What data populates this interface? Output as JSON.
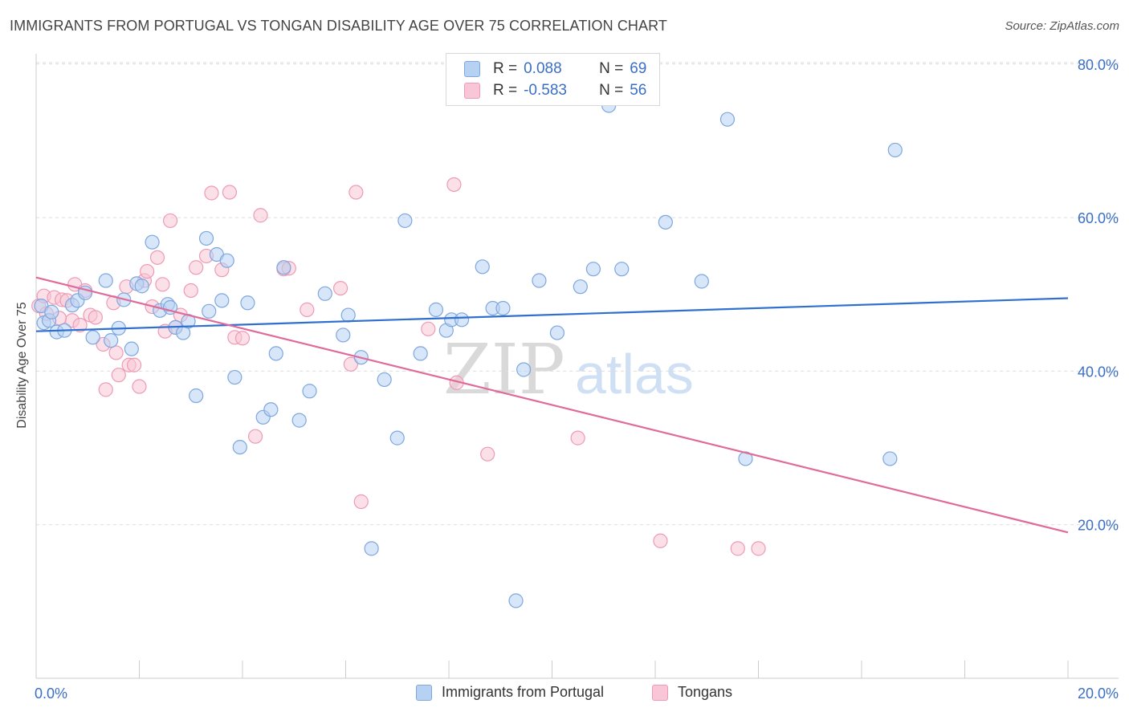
{
  "title": "IMMIGRANTS FROM PORTUGAL VS TONGAN DISABILITY AGE OVER 75 CORRELATION CHART",
  "source": "Source: ZipAtlas.com",
  "watermark": {
    "zip": "ZIP",
    "atlas": "atlas"
  },
  "colors": {
    "blue_fill": "#b7d1f2",
    "blue_stroke": "#7ea7de",
    "blue_line": "#2f6fd0",
    "pink_fill": "#f8c6d6",
    "pink_stroke": "#ee9ab6",
    "pink_line": "#e06a98",
    "tick_text": "#3b6fc4",
    "grid": "#dddddd"
  },
  "legend_top": {
    "rows": [
      {
        "r_label": "R =",
        "r_value": "0.088",
        "n_label": "N =",
        "n_value": "69"
      },
      {
        "r_label": "R =",
        "r_value": "-0.583",
        "n_label": "N =",
        "n_value": "56"
      }
    ]
  },
  "legend_bottom": [
    "Immigrants from Portugal",
    "Tongans"
  ],
  "chart_data": {
    "type": "scatter",
    "title": "IMMIGRANTS FROM PORTUGAL VS TONGAN DISABILITY AGE OVER 75 CORRELATION CHART",
    "xlabel": "",
    "ylabel": "Disability Age Over 75",
    "xlim": [
      0,
      20
    ],
    "ylim": [
      0,
      85
    ],
    "x_ticks": [
      "0.0%",
      "20.0%"
    ],
    "y_ticks": [
      {
        "value": 20,
        "label": "20.0%"
      },
      {
        "value": 40,
        "label": "40.0%"
      },
      {
        "value": 60,
        "label": "60.0%"
      },
      {
        "value": 80,
        "label": "80.0%"
      }
    ],
    "grid": true,
    "legend_position": "top-center",
    "series": [
      {
        "name": "Immigrants from Portugal",
        "r": 0.088,
        "n": 69,
        "trend": {
          "x": [
            0,
            20
          ],
          "y": [
            45.2,
            49.5
          ]
        },
        "points": [
          [
            0.1,
            48.5
          ],
          [
            0.15,
            46.3
          ],
          [
            0.25,
            46.6
          ],
          [
            0.4,
            45.1
          ],
          [
            0.55,
            45.3
          ],
          [
            0.7,
            48.6
          ],
          [
            0.8,
            49.2
          ],
          [
            0.95,
            50.2
          ],
          [
            1.1,
            44.4
          ],
          [
            1.35,
            51.8
          ],
          [
            1.45,
            44.0
          ],
          [
            1.6,
            45.6
          ],
          [
            1.7,
            49.3
          ],
          [
            1.85,
            42.9
          ],
          [
            1.95,
            51.4
          ],
          [
            2.05,
            51.1
          ],
          [
            2.25,
            56.8
          ],
          [
            2.4,
            47.9
          ],
          [
            2.55,
            48.7
          ],
          [
            2.7,
            45.7
          ],
          [
            2.85,
            45.0
          ],
          [
            2.95,
            46.5
          ],
          [
            3.1,
            36.8
          ],
          [
            3.3,
            57.3
          ],
          [
            3.35,
            47.8
          ],
          [
            3.5,
            55.2
          ],
          [
            3.6,
            49.2
          ],
          [
            3.7,
            54.4
          ],
          [
            3.85,
            39.2
          ],
          [
            3.95,
            30.1
          ],
          [
            4.1,
            48.9
          ],
          [
            4.4,
            34.0
          ],
          [
            4.55,
            35.0
          ],
          [
            4.65,
            42.3
          ],
          [
            4.8,
            53.5
          ],
          [
            5.1,
            33.6
          ],
          [
            5.3,
            37.4
          ],
          [
            5.6,
            50.1
          ],
          [
            5.95,
            44.7
          ],
          [
            6.05,
            47.3
          ],
          [
            6.3,
            41.8
          ],
          [
            6.5,
            16.9
          ],
          [
            6.75,
            38.9
          ],
          [
            7.0,
            31.3
          ],
          [
            7.15,
            59.6
          ],
          [
            7.45,
            42.3
          ],
          [
            7.75,
            48.0
          ],
          [
            7.95,
            45.3
          ],
          [
            8.05,
            46.7
          ],
          [
            8.25,
            46.7
          ],
          [
            8.65,
            53.6
          ],
          [
            8.85,
            48.2
          ],
          [
            9.05,
            48.2
          ],
          [
            9.3,
            10.1
          ],
          [
            9.45,
            40.2
          ],
          [
            9.75,
            51.8
          ],
          [
            10.1,
            45.0
          ],
          [
            10.55,
            51.0
          ],
          [
            10.8,
            53.3
          ],
          [
            11.1,
            74.6
          ],
          [
            11.35,
            53.3
          ],
          [
            12.2,
            59.4
          ],
          [
            12.9,
            51.7
          ],
          [
            13.4,
            72.8
          ],
          [
            13.75,
            28.6
          ],
          [
            16.55,
            28.6
          ],
          [
            16.65,
            68.8
          ],
          [
            0.3,
            47.7
          ],
          [
            2.6,
            48.3
          ]
        ]
      },
      {
        "name": "Tongans",
        "r": -0.583,
        "n": 56,
        "trend": {
          "x": [
            0,
            20
          ],
          "y": [
            52.2,
            19.0
          ]
        },
        "points": [
          [
            0.05,
            48.5
          ],
          [
            0.15,
            49.8
          ],
          [
            0.2,
            47.5
          ],
          [
            0.35,
            49.6
          ],
          [
            0.5,
            49.3
          ],
          [
            0.6,
            49.2
          ],
          [
            0.7,
            46.6
          ],
          [
            0.75,
            51.3
          ],
          [
            0.85,
            46.0
          ],
          [
            0.95,
            50.5
          ],
          [
            1.05,
            47.3
          ],
          [
            1.15,
            47.0
          ],
          [
            1.3,
            43.5
          ],
          [
            1.35,
            37.6
          ],
          [
            1.5,
            48.9
          ],
          [
            1.55,
            42.4
          ],
          [
            1.6,
            39.5
          ],
          [
            1.75,
            51.0
          ],
          [
            1.8,
            40.8
          ],
          [
            1.9,
            40.8
          ],
          [
            2.0,
            38.0
          ],
          [
            2.1,
            51.8
          ],
          [
            2.15,
            53.0
          ],
          [
            2.25,
            48.4
          ],
          [
            2.35,
            54.8
          ],
          [
            2.45,
            51.3
          ],
          [
            2.6,
            59.6
          ],
          [
            2.7,
            45.7
          ],
          [
            2.8,
            47.3
          ],
          [
            3.0,
            50.5
          ],
          [
            3.1,
            53.5
          ],
          [
            3.3,
            55.0
          ],
          [
            3.4,
            63.2
          ],
          [
            3.6,
            53.2
          ],
          [
            3.75,
            63.3
          ],
          [
            3.85,
            44.4
          ],
          [
            4.0,
            44.3
          ],
          [
            4.25,
            31.5
          ],
          [
            4.35,
            60.3
          ],
          [
            4.8,
            53.3
          ],
          [
            4.9,
            53.4
          ],
          [
            5.25,
            48.0
          ],
          [
            5.9,
            50.8
          ],
          [
            6.1,
            40.9
          ],
          [
            6.2,
            63.3
          ],
          [
            6.3,
            23.0
          ],
          [
            7.6,
            45.5
          ],
          [
            8.1,
            64.3
          ],
          [
            8.15,
            38.5
          ],
          [
            8.75,
            29.2
          ],
          [
            10.5,
            31.3
          ],
          [
            12.1,
            17.9
          ],
          [
            13.6,
            16.9
          ],
          [
            14.0,
            16.9
          ],
          [
            0.45,
            46.9
          ],
          [
            2.5,
            45.2
          ]
        ]
      }
    ]
  }
}
